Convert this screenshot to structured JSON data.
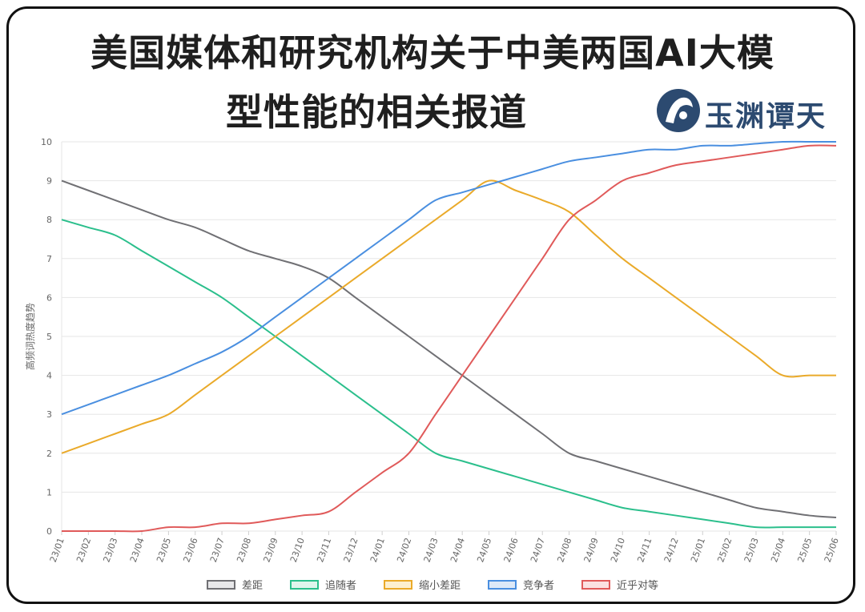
{
  "header": {
    "title_line1": "美国媒体和研究机构关于中美两国AI大模",
    "title_line2": "型性能的相关报道",
    "logo_text": "玉渊谭天"
  },
  "chart_data": {
    "type": "line",
    "ylabel": "高频词热度趋势",
    "ylim": [
      0,
      10
    ],
    "yticks": [
      "0",
      "1",
      "2",
      "3",
      "4",
      "5",
      "6",
      "7",
      "8",
      "9",
      "10"
    ],
    "grid": true,
    "legend_position": "bottom",
    "categories": [
      "23/01",
      "23/02",
      "23/03",
      "23/04",
      "23/05",
      "23/06",
      "23/07",
      "23/08",
      "23/09",
      "23/10",
      "23/11",
      "23/12",
      "24/01",
      "24/02",
      "24/03",
      "24/04",
      "24/05",
      "24/06",
      "24/07",
      "24/08",
      "24/09",
      "24/10",
      "24/11",
      "24/12",
      "25/01",
      "25/02",
      "25/03",
      "25/04",
      "25/05",
      "25/06"
    ],
    "series": [
      {
        "name": "差距",
        "color": "#707074",
        "fill": "#e8e8ea",
        "values": [
          9.0,
          8.75,
          8.5,
          8.25,
          8.0,
          7.8,
          7.5,
          7.2,
          7.0,
          6.8,
          6.5,
          6.0,
          5.5,
          5.0,
          4.5,
          4.0,
          3.5,
          3.0,
          2.5,
          2.0,
          1.8,
          1.6,
          1.4,
          1.2,
          1.0,
          0.8,
          0.6,
          0.5,
          0.4,
          0.35
        ]
      },
      {
        "name": "追随者",
        "color": "#2bbf8c",
        "fill": "#dff5ec",
        "values": [
          8.0,
          7.8,
          7.6,
          7.2,
          6.8,
          6.4,
          6.0,
          5.5,
          5.0,
          4.5,
          4.0,
          3.5,
          3.0,
          2.5,
          2.0,
          1.8,
          1.6,
          1.4,
          1.2,
          1.0,
          0.8,
          0.6,
          0.5,
          0.4,
          0.3,
          0.2,
          0.1,
          0.1,
          0.1,
          0.1
        ]
      },
      {
        "name": "缩小差距",
        "color": "#eaaa2a",
        "fill": "#fdf0d0",
        "values": [
          2.0,
          2.25,
          2.5,
          2.75,
          3.0,
          3.5,
          4.0,
          4.5,
          5.0,
          5.5,
          6.0,
          6.5,
          7.0,
          7.5,
          8.0,
          8.5,
          9.0,
          8.75,
          8.5,
          8.2,
          7.6,
          7.0,
          6.5,
          6.0,
          5.5,
          5.0,
          4.5,
          4.0,
          4.0,
          4.0
        ]
      },
      {
        "name": "竞争者",
        "color": "#4a8fe0",
        "fill": "#dde9f8",
        "values": [
          3.0,
          3.25,
          3.5,
          3.75,
          4.0,
          4.3,
          4.6,
          5.0,
          5.5,
          6.0,
          6.5,
          7.0,
          7.5,
          8.0,
          8.5,
          8.7,
          8.9,
          9.1,
          9.3,
          9.5,
          9.6,
          9.7,
          9.8,
          9.8,
          9.9,
          9.9,
          9.95,
          10.0,
          10.0,
          10.0
        ]
      },
      {
        "name": "近乎对等",
        "color": "#e05a5a",
        "fill": "#fbe1e1",
        "values": [
          0.0,
          0.0,
          0.0,
          0.0,
          0.1,
          0.1,
          0.2,
          0.2,
          0.3,
          0.4,
          0.5,
          1.0,
          1.5,
          2.0,
          3.0,
          4.0,
          5.0,
          6.0,
          7.0,
          8.0,
          8.5,
          9.0,
          9.2,
          9.4,
          9.5,
          9.6,
          9.7,
          9.8,
          9.9,
          9.9
        ]
      }
    ]
  }
}
